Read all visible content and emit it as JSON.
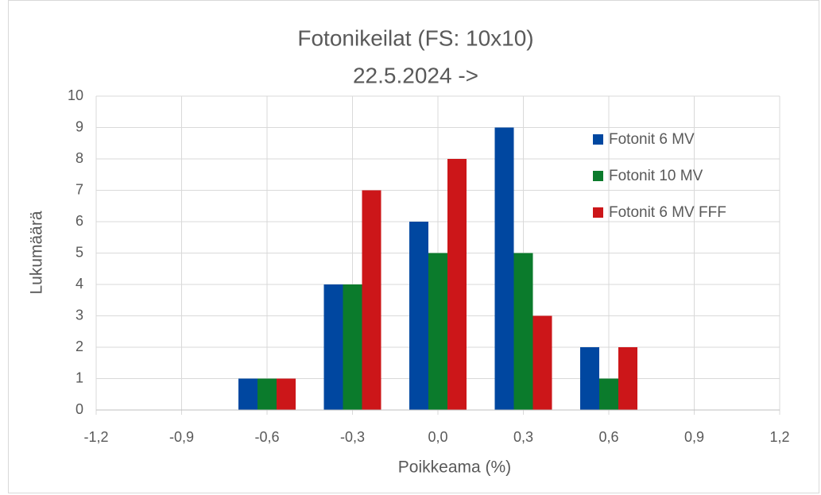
{
  "chart_data": {
    "type": "bar",
    "title": "Fotonikeilat (FS: 10x10)",
    "subtitle": "22.5.2024 ->",
    "x_label": "Poikkeama (%)",
    "y_label": "Lukumäärä",
    "x": [
      -0.6,
      -0.3,
      0.0,
      0.3,
      0.6
    ],
    "series": [
      {
        "name": "Fotonit 6 MV",
        "color": "#0047a0",
        "values": [
          1,
          4,
          6,
          9,
          2
        ]
      },
      {
        "name": "Fotonit 10 MV",
        "color": "#0b7b2c",
        "values": [
          1,
          4,
          5,
          5,
          1
        ]
      },
      {
        "name": "Fotonit 6 MV FFF",
        "color": "#cc1619",
        "values": [
          1,
          7,
          8,
          3,
          2
        ]
      }
    ],
    "xlim": [
      -1.2,
      1.2
    ],
    "xticks": [
      {
        "value": -1.2,
        "label": "-1,2"
      },
      {
        "value": -0.9,
        "label": "-0,9"
      },
      {
        "value": -0.6,
        "label": "-0,6"
      },
      {
        "value": -0.3,
        "label": "-0,3"
      },
      {
        "value": 0,
        "label": "0,0"
      },
      {
        "value": 0.3,
        "label": "0,3"
      },
      {
        "value": 0.6,
        "label": "0,6"
      },
      {
        "value": 0.9,
        "label": "0,9"
      },
      {
        "value": 1.2,
        "label": "1,2"
      }
    ],
    "ylim": [
      0,
      10
    ],
    "yticks": [
      0,
      1,
      2,
      3,
      4,
      5,
      6,
      7,
      8,
      9,
      10
    ],
    "grid": true,
    "legend": "top-right"
  }
}
